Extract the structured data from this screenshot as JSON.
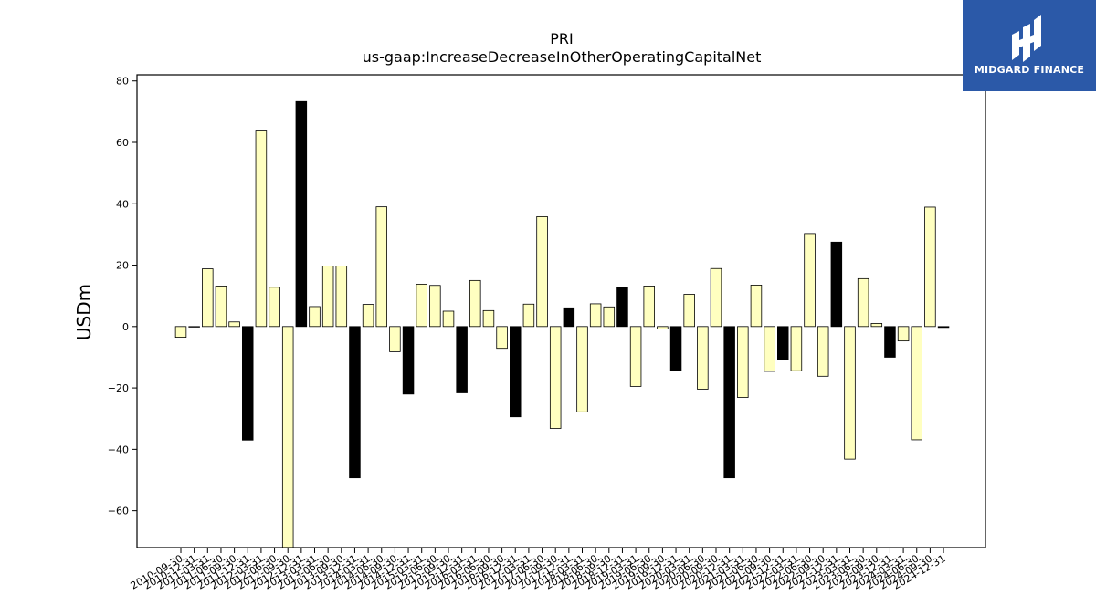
{
  "chart_data": {
    "type": "bar",
    "title": "PRI",
    "subtitle": "us-gaap:IncreaseDecreaseInOtherOperatingCapitalNet",
    "ylabel": "USDm",
    "xlabel": "",
    "ylim": [
      -72,
      82
    ],
    "yticks": [
      80,
      60,
      40,
      20,
      0,
      -20,
      -40,
      -60
    ],
    "grid": false,
    "colors": {
      "quarterly": "#ffffc0",
      "annual": "#000000",
      "edge": "#000000"
    },
    "categories": [
      "2010-09-30",
      "2010-12-31",
      "2011-03-31",
      "2011-06-30",
      "2011-09-30",
      "2011-12-31",
      "2012-03-31",
      "2012-06-30",
      "2012-09-30",
      "2012-12-31",
      "2013-03-31",
      "2013-06-30",
      "2013-09-30",
      "2013-12-31",
      "2014-03-31",
      "2014-06-30",
      "2014-09-30",
      "2014-12-31",
      "2015-03-31",
      "2015-06-30",
      "2015-09-30",
      "2015-12-31",
      "2016-03-31",
      "2016-06-30",
      "2016-09-30",
      "2016-12-31",
      "2017-03-31",
      "2017-06-30",
      "2017-09-30",
      "2017-12-31",
      "2018-03-31",
      "2018-06-30",
      "2018-09-30",
      "2018-12-31",
      "2019-03-31",
      "2019-06-30",
      "2019-09-30",
      "2019-12-31",
      "2020-03-31",
      "2020-06-30",
      "2020-09-30",
      "2020-12-31",
      "2021-03-31",
      "2021-06-30",
      "2021-09-30",
      "2021-12-31",
      "2022-03-31",
      "2022-06-30",
      "2022-09-30",
      "2022-12-31",
      "2023-03-31",
      "2023-06-30",
      "2023-09-30",
      "2023-12-31",
      "2024-03-31",
      "2024-06-30",
      "2024-09-30",
      "2024-12-31"
    ],
    "tick_labels": [
      "2010-09-30",
      "2010-12-31",
      "2011-03-31",
      "2011-06-30",
      "2011-09-30",
      "2011-12-31",
      "2012-03-31",
      "2012-06-30",
      "2012-09-30",
      "2012-12-31",
      "2013-03-31",
      "2013-06-30",
      "2013-09-30",
      "2013-12-31",
      "2014-03-31",
      "2014-06-30",
      "2014-09-30",
      "2014-12-31",
      "2015-03-31",
      "2015-06-30",
      "2015-09-30",
      "2015-12-31",
      "2016-03-31",
      "2016-06-30",
      "2016-09-30",
      "2016-12-31",
      "2017-03-31",
      "2017-06-30",
      "2017-09-30",
      "2017-12-31",
      "2018-03-31",
      "2018-06-30",
      "2018-09-30",
      "2018-12-31",
      "2019-03-31",
      "2019-06-30",
      "2019-09-30",
      "2019-12-31",
      "2020-03-31",
      "2020-06-30",
      "2020-09-30",
      "2020-12-31",
      "2021-03-31",
      "2021-06-30",
      "2021-09-30",
      "2021-12-31",
      "2022-03-31",
      "2022-06-30",
      "2022-09-30",
      "2022-12-31",
      "2023-03-31",
      "2023-06-30",
      "2023-09-30",
      "2023-12-31",
      "2024-03-31",
      "2024-06-30",
      "2024-09-30",
      "2024-12-31"
    ],
    "values": [
      -3.5,
      0,
      18.8,
      13.2,
      1.5,
      -37,
      64,
      12.8,
      -72,
      73.3,
      6.5,
      19.7,
      19.7,
      -49.3,
      7.2,
      39,
      -8.2,
      -22,
      13.8,
      13.4,
      5,
      -21.6,
      15,
      5.2,
      -7.1,
      -29.4,
      7.3,
      35.8,
      -33.2,
      6.1,
      -27.8,
      7.4,
      6.4,
      12.8,
      -19.5,
      13.2,
      -0.8,
      -14.5,
      10.5,
      -20.4,
      18.9,
      -49.3,
      -23.1,
      13.5,
      -14.6,
      -10.7,
      -14.4,
      30.3,
      -16.2,
      27.5,
      -43.2,
      15.6,
      1,
      -10,
      -4.7,
      -36.9,
      38.9,
      -0.3
    ],
    "annual": [
      false,
      false,
      false,
      false,
      false,
      true,
      false,
      false,
      false,
      true,
      false,
      false,
      false,
      true,
      false,
      false,
      false,
      true,
      false,
      false,
      false,
      true,
      false,
      false,
      false,
      true,
      false,
      false,
      false,
      true,
      false,
      false,
      false,
      true,
      false,
      false,
      false,
      true,
      false,
      false,
      false,
      true,
      false,
      false,
      false,
      true,
      false,
      false,
      false,
      true,
      false,
      false,
      false,
      true,
      false,
      false,
      false,
      true
    ]
  },
  "logo": {
    "text": "MIDGARD FINANCE"
  }
}
